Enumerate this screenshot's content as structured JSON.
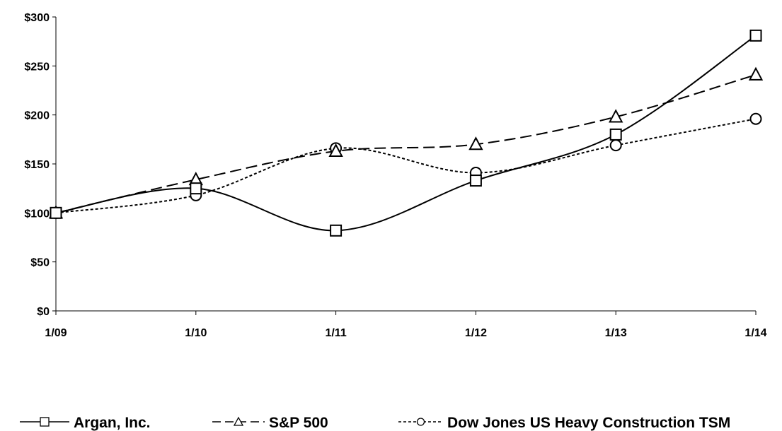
{
  "chart_data": {
    "type": "line",
    "categories": [
      "1/09",
      "1/10",
      "1/11",
      "1/12",
      "1/13",
      "1/14"
    ],
    "y_tick_labels": [
      "$0",
      "$50",
      "$100",
      "$150",
      "$200",
      "$250",
      "$300"
    ],
    "ylim": [
      0,
      300
    ],
    "grid": false,
    "legend_position": "bottom",
    "series": [
      {
        "name": "Argan, Inc.",
        "values": [
          100,
          125,
          82,
          133,
          180,
          281
        ],
        "marker": "square",
        "dash": "solid",
        "color": "#000000"
      },
      {
        "name": "S&P 500",
        "values": [
          100,
          134,
          163,
          170,
          198,
          241
        ],
        "marker": "triangle",
        "dash": "long-dash",
        "color": "#000000"
      },
      {
        "name": "Dow Jones US Heavy Construction TSM",
        "values": [
          100,
          118,
          166,
          141,
          169,
          196
        ],
        "marker": "circle",
        "dash": "short-dash",
        "color": "#000000"
      }
    ]
  }
}
